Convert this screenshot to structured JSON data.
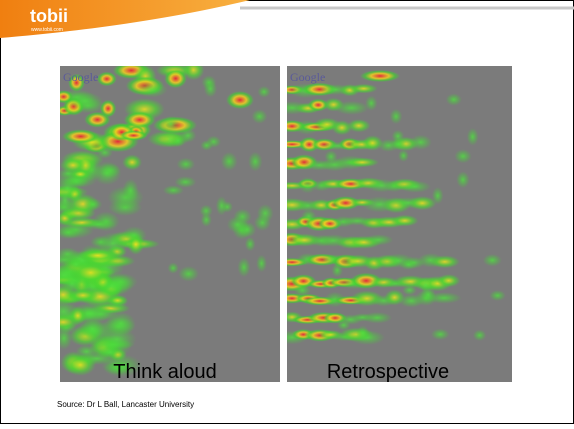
{
  "header": {
    "logo": "tobii",
    "url": "www.tobii.com"
  },
  "panels": [
    {
      "logo": "Google",
      "label": "Think aloud"
    },
    {
      "logo": "Google",
      "label": "Retrospective"
    }
  ],
  "source": "Source: Dr L Ball, Lancaster University"
}
